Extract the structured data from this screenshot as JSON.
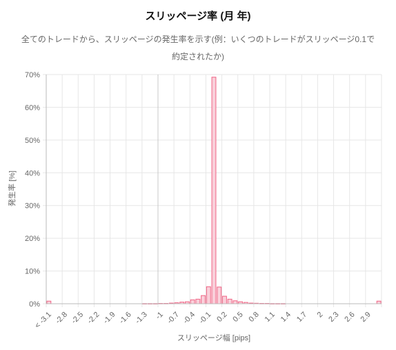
{
  "title": "スリッページ率 (月 年)",
  "subtitle": "全てのトレードから、スリッページの発生率を示す(例：いくつのトレードがスリッページ0.1で約定されたか)",
  "colors": {
    "bar_fill": "#f9d0da",
    "bar_stroke": "#f06384",
    "grid": "#e6e6e6",
    "axis": "#bbbbbb"
  },
  "chart_data": {
    "type": "bar",
    "title": "スリッページ率 (月 年)",
    "subtitle": "全てのトレードから、スリッページの発生率を示す(例：いくつのトレードがスリッページ0.1で約定されたか)",
    "xlabel": "スリッページ幅 [pips]",
    "ylabel": "発生率 [%]",
    "ylim": [
      0,
      70
    ],
    "yticks": [
      "0%",
      "10%",
      "20%",
      "30%",
      "40%",
      "50%",
      "60%",
      "70%"
    ],
    "xticks": [
      "< -3.1",
      "-2.8",
      "-2.5",
      "-2.2",
      "-1.9",
      "-1.6",
      "-1.3",
      "-1",
      "-0.7",
      "-0.4",
      "-0.1",
      "0.2",
      "0.5",
      "0.8",
      "1.1",
      "1.4",
      "1.7",
      "2",
      "2.3",
      "2.6",
      "2.9"
    ],
    "grid": true,
    "legend": "none",
    "categories": [
      "< -3.1",
      "-3",
      "-2.9",
      "-2.8",
      "-2.7",
      "-2.6",
      "-2.5",
      "-2.4",
      "-2.3",
      "-2.2",
      "-2.1",
      "-2",
      "-1.9",
      "-1.8",
      "-1.7",
      "-1.6",
      "-1.5",
      "-1.4",
      "-1.3",
      "-1.2",
      "-1.1",
      "-1",
      "-0.9",
      "-0.8",
      "-0.7",
      "-0.6",
      "-0.5",
      "-0.4",
      "-0.3",
      "-0.2",
      "-0.1",
      "0",
      "0.1",
      "0.2",
      "0.3",
      "0.4",
      "0.5",
      "0.6",
      "0.7",
      "0.8",
      "0.9",
      "1",
      "1.1",
      "1.2",
      "1.3",
      "1.4",
      "1.5",
      "1.6",
      "1.7",
      "1.8",
      "1.9",
      "2",
      "2.1",
      "2.2",
      "2.3",
      "2.4",
      "2.5",
      "2.6",
      "2.7",
      "2.8",
      "2.9",
      "3",
      "> 3.1"
    ],
    "values": [
      0.8,
      0,
      0,
      0,
      0,
      0,
      0,
      0,
      0,
      0,
      0,
      0,
      0,
      0,
      0,
      0,
      0,
      0,
      0.05,
      0.05,
      0.05,
      0.1,
      0.1,
      0.2,
      0.3,
      0.5,
      0.6,
      1.2,
      1.4,
      2.5,
      5.2,
      69.2,
      5.1,
      2.3,
      1.4,
      0.9,
      0.6,
      0.4,
      0.2,
      0.15,
      0.1,
      0.1,
      0.05,
      0.05,
      0.05,
      0,
      0,
      0,
      0,
      0,
      0,
      0,
      0,
      0,
      0,
      0,
      0,
      0,
      0,
      0,
      0,
      0,
      0.8
    ]
  }
}
